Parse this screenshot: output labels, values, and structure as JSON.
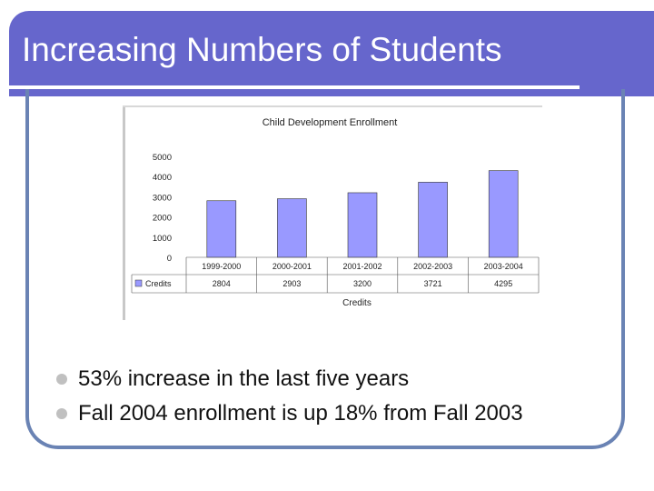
{
  "slide": {
    "title": "Increasing Numbers of Students",
    "bullets": [
      "53% increase in the last five years",
      "Fall 2004 enrollment is up 18% from Fall 2003"
    ]
  },
  "colors": {
    "title_bar": "#6666cc",
    "frame": "#6a83b4",
    "bar_fill": "#9999ff"
  },
  "chart_data": {
    "type": "bar",
    "title": "Child Development Enrollment",
    "xlabel": "Credits",
    "ylabel": "",
    "categories": [
      "1999-2000",
      "2000-2001",
      "2001-2002",
      "2002-2003",
      "2003-2004"
    ],
    "series": [
      {
        "name": "Credits",
        "values": [
          2804,
          2903,
          3200,
          3721,
          4295
        ]
      }
    ],
    "ylim": [
      0,
      5000
    ],
    "yticks": [
      0,
      1000,
      2000,
      3000,
      4000,
      5000
    ],
    "grid": false,
    "legend": "data-table-left"
  }
}
